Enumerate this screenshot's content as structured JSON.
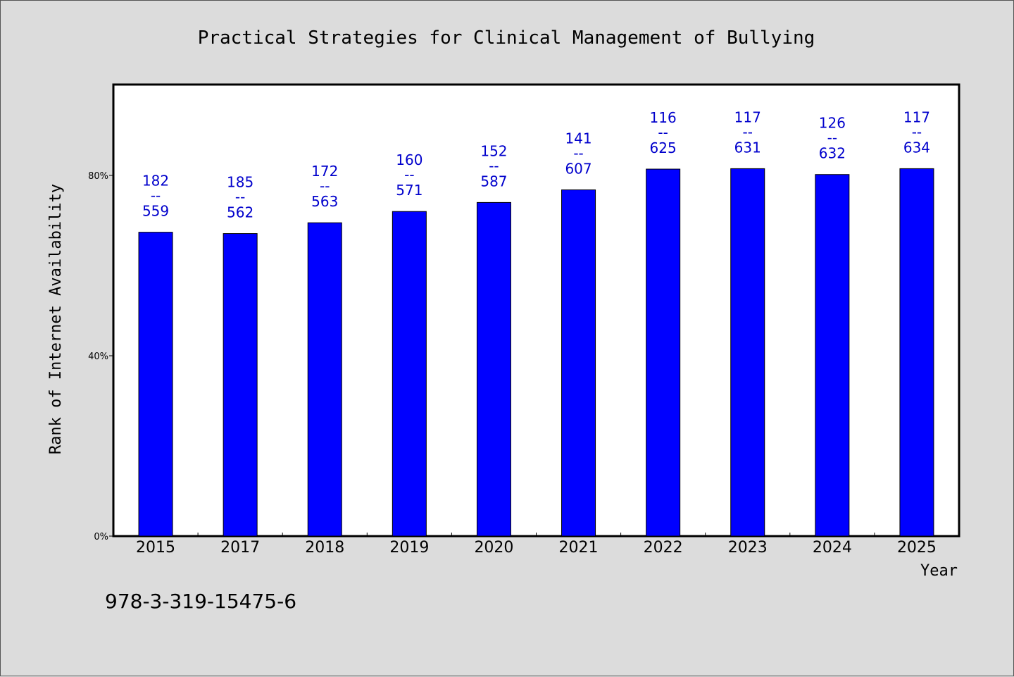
{
  "chart_data": {
    "type": "bar",
    "title": "Practical Strategies for Clinical Management of Bullying",
    "xlabel": "Year",
    "ylabel": "Rank of Internet Availability",
    "categories": [
      "2015",
      "2017",
      "2018",
      "2019",
      "2020",
      "2021",
      "2022",
      "2023",
      "2024",
      "2025"
    ],
    "values": [
      67.4,
      67.1,
      69.5,
      72.0,
      74.0,
      76.8,
      81.4,
      81.5,
      80.2,
      81.5
    ],
    "annotations": [
      {
        "top": "182",
        "mid": "--",
        "bottom": "559"
      },
      {
        "top": "185",
        "mid": "--",
        "bottom": "562"
      },
      {
        "top": "172",
        "mid": "--",
        "bottom": "563"
      },
      {
        "top": "160",
        "mid": "--",
        "bottom": "571"
      },
      {
        "top": "152",
        "mid": "--",
        "bottom": "587"
      },
      {
        "top": "141",
        "mid": "--",
        "bottom": "607"
      },
      {
        "top": "116",
        "mid": "--",
        "bottom": "625"
      },
      {
        "top": "117",
        "mid": "--",
        "bottom": "631"
      },
      {
        "top": "126",
        "mid": "--",
        "bottom": "632"
      },
      {
        "top": "117",
        "mid": "--",
        "bottom": "634"
      }
    ],
    "ylim": [
      0,
      100
    ],
    "yticks": [
      {
        "value": 0,
        "label": "0%"
      },
      {
        "value": 40,
        "label": "40%"
      },
      {
        "value": 80,
        "label": "80%"
      }
    ],
    "grid": false,
    "bar_color": "#0000ff",
    "label_color": "#0000cc"
  },
  "footer_text": "978-3-319-15475-6"
}
